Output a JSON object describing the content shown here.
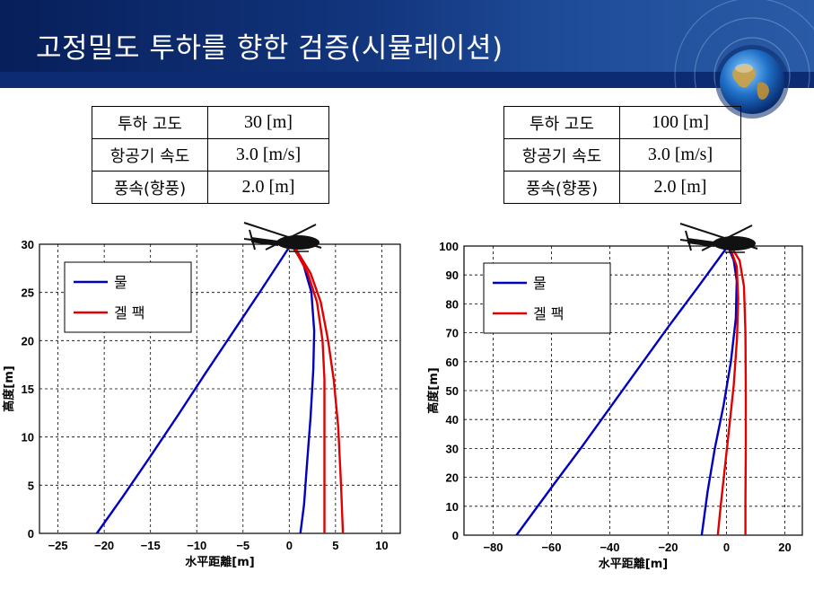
{
  "title": "고정밀도 투하를 향한 검증(시뮬레이션)",
  "tables": [
    {
      "rows": [
        {
          "label": "투하 고도",
          "value": "30 [m]"
        },
        {
          "label": "항공기 속도",
          "value": "3.0 [m/s]"
        },
        {
          "label": "풍속(향풍)",
          "value": "2.0 [m]"
        }
      ]
    },
    {
      "rows": [
        {
          "label": "투하 고도",
          "value": "100 [m]"
        },
        {
          "label": "항공기 속도",
          "value": "3.0 [m/s]"
        },
        {
          "label": "풍속(향풍)",
          "value": "2.0 [m]"
        }
      ]
    }
  ],
  "icons": [
    "helicopter-icon",
    "globe-icon"
  ],
  "colors": {
    "water": "#0000c0",
    "gel": "#e00000",
    "banner": "#12357d"
  },
  "chart_data": [
    {
      "type": "line",
      "xlabel": "水平距離[m]",
      "ylabel": "高度[m]",
      "xlim": [
        -27,
        12
      ],
      "ylim": [
        0,
        30
      ],
      "xticks": [
        -25,
        -20,
        -15,
        -10,
        -5,
        0,
        5,
        10
      ],
      "yticks": [
        0,
        5,
        10,
        15,
        20,
        25,
        30
      ],
      "grid": true,
      "legend_position": "top-left",
      "legend": [
        "물",
        "겔 팩"
      ],
      "series": [
        {
          "name": "물",
          "color": "#0000c0",
          "x": [
            0.2,
            -3,
            -6,
            -9,
            -12,
            -15,
            -18,
            -20.8
          ],
          "y": [
            30,
            25.3,
            21.0,
            16.7,
            12.3,
            8.0,
            3.8,
            0
          ]
        },
        {
          "name": "물",
          "color": "#0000c0",
          "x": [
            0.2,
            1.5,
            2.4,
            2.7,
            2.6,
            2.3,
            1.9,
            1.6,
            1.2
          ],
          "y": [
            30,
            28,
            25,
            21,
            17,
            12,
            7,
            3,
            0
          ]
        },
        {
          "name": "겔 팩",
          "color": "#e00000",
          "x": [
            0.3,
            2.0,
            3.0,
            3.6,
            3.8,
            3.8,
            3.8,
            3.8
          ],
          "y": [
            30,
            27,
            24,
            20,
            16,
            11,
            5,
            0
          ]
        },
        {
          "name": "겔 팩",
          "color": "#e00000",
          "x": [
            0.4,
            2.3,
            3.4,
            4.2,
            4.8,
            5.3,
            5.6,
            5.8
          ],
          "y": [
            30,
            27,
            24,
            20,
            16,
            11,
            5,
            0
          ]
        }
      ]
    },
    {
      "type": "line",
      "xlabel": "水平距離[m]",
      "ylabel": "高度[m]",
      "xlim": [
        -90,
        26
      ],
      "ylim": [
        0,
        100
      ],
      "xticks": [
        -80,
        -60,
        -40,
        -20,
        0,
        20
      ],
      "yticks": [
        0,
        10,
        20,
        30,
        40,
        50,
        60,
        70,
        80,
        90,
        100
      ],
      "grid": true,
      "legend_position": "top-left",
      "legend": [
        "물",
        "겔 팩"
      ],
      "series": [
        {
          "name": "물",
          "color": "#0000c0",
          "x": [
            0.5,
            -10,
            -20,
            -30,
            -40,
            -50,
            -60,
            -72
          ],
          "y": [
            100,
            85.5,
            72.0,
            58.0,
            44.0,
            30.0,
            16.5,
            0
          ]
        },
        {
          "name": "물",
          "color": "#0000c0",
          "x": [
            0.5,
            2.5,
            3.5,
            3.2,
            1.5,
            -1.0,
            -4.0,
            -6.5,
            -8.5
          ],
          "y": [
            100,
            95,
            88,
            75,
            60,
            45,
            30,
            15,
            0
          ]
        },
        {
          "name": "겔 팩",
          "color": "#e00000",
          "x": [
            1.0,
            3.5,
            4.0,
            3.6,
            2.5,
            1.0,
            -0.5,
            -2.0,
            -3.0
          ],
          "y": [
            100,
            93,
            82,
            68,
            52,
            38,
            24,
            10,
            0
          ]
        },
        {
          "name": "겔 팩",
          "color": "#e00000",
          "x": [
            1.5,
            4.5,
            6.0,
            6.5,
            6.6,
            6.6,
            6.5,
            6.5
          ],
          "y": [
            100,
            95,
            86,
            70,
            50,
            30,
            12,
            0
          ]
        }
      ]
    }
  ]
}
